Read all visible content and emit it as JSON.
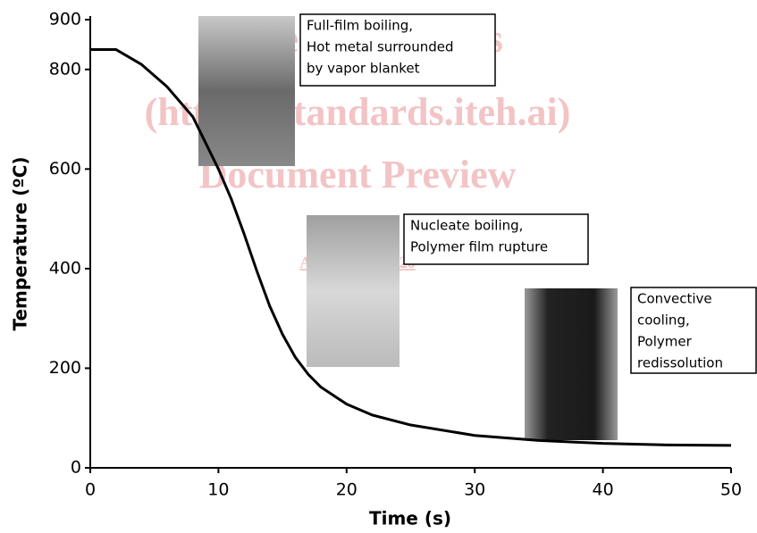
{
  "chart_data": {
    "type": "line",
    "xlabel": "Time (s)",
    "ylabel": "Temperature (ºC)",
    "x": [
      0,
      2,
      4,
      6,
      8,
      10,
      11,
      12,
      13,
      14,
      15,
      16,
      17,
      18,
      20,
      22,
      25,
      30,
      35,
      40,
      45,
      50
    ],
    "series": [
      {
        "name": "Temperature",
        "color": "#000000",
        "values": [
          840,
          840,
          810,
          765,
          705,
          600,
          540,
          470,
          395,
          325,
          268,
          222,
          188,
          162,
          128,
          106,
          86,
          65,
          55,
          49,
          46,
          45
        ]
      }
    ],
    "xlim": [
      0,
      50
    ],
    "xticks": [
      0,
      10,
      20,
      30,
      40,
      50
    ],
    "ylim": [
      0,
      900
    ],
    "yticks": [
      0,
      200,
      400,
      600,
      800,
      900
    ],
    "annotations": [
      {
        "lines": [
          "Full-film boiling,",
          "Hot metal surrounded",
          "by vapor blanket"
        ]
      },
      {
        "lines": [
          "Nucleate boiling,",
          "Polymer film rupture"
        ]
      },
      {
        "lines": [
          "Convective",
          "cooling,",
          "Polymer",
          "redissolution"
        ]
      }
    ],
    "watermark": [
      "iTeh Standards",
      "(https://standards.iteh.ai)",
      "Document Preview",
      "ASTM D6482-20"
    ]
  }
}
